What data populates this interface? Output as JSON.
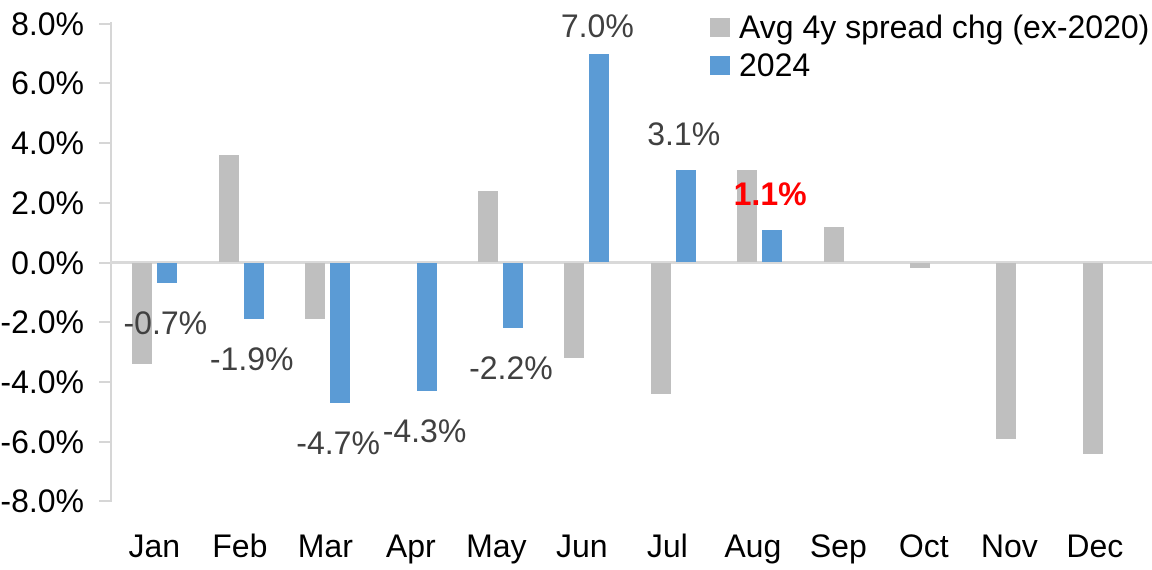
{
  "chart_data": {
    "type": "bar",
    "title": "",
    "xlabel": "",
    "ylabel": "",
    "grid": false,
    "legend_position": "top-right",
    "categories": [
      "Jan",
      "Feb",
      "Mar",
      "Apr",
      "May",
      "Jun",
      "Jul",
      "Aug",
      "Sep",
      "Oct",
      "Nov",
      "Dec"
    ],
    "series": [
      {
        "name": "Avg 4y spread chg (ex-2020)",
        "color": "#bfbfbf",
        "unit": "%",
        "values": [
          -3.4,
          3.6,
          -1.9,
          0.0,
          2.4,
          -3.2,
          -4.4,
          3.1,
          1.2,
          -0.2,
          -5.9,
          -6.4
        ]
      },
      {
        "name": "2024",
        "color": "#5b9bd5",
        "unit": "%",
        "values": [
          -0.7,
          -1.9,
          -4.7,
          -4.3,
          -2.2,
          7.0,
          3.1,
          1.1,
          null,
          null,
          null,
          null
        ]
      }
    ],
    "data_labels": [
      {
        "category": "Jan",
        "series": "2024",
        "text": "-0.7%",
        "color": "#404040",
        "bold": false
      },
      {
        "category": "Feb",
        "series": "2024",
        "text": "-1.9%",
        "color": "#404040",
        "bold": false
      },
      {
        "category": "Mar",
        "series": "2024",
        "text": "-4.7%",
        "color": "#404040",
        "bold": false
      },
      {
        "category": "Apr",
        "series": "2024",
        "text": "-4.3%",
        "color": "#404040",
        "bold": false
      },
      {
        "category": "May",
        "series": "2024",
        "text": "-2.2%",
        "color": "#404040",
        "bold": false
      },
      {
        "category": "Jun",
        "series": "2024",
        "text": "7.0%",
        "color": "#404040",
        "bold": false
      },
      {
        "category": "Jul",
        "series": "2024",
        "text": "3.1%",
        "color": "#404040",
        "bold": false
      },
      {
        "category": "Aug",
        "series": "2024",
        "text": "1.1%",
        "color": "#ff0000",
        "bold": true
      }
    ],
    "y_axis": {
      "min": -8,
      "max": 8,
      "step": 2,
      "tick_values": [
        8,
        6,
        4,
        2,
        0,
        -2,
        -4,
        -6,
        -8
      ],
      "ticks": [
        "8.0%",
        "6.0%",
        "4.0%",
        "2.0%",
        "0.0%",
        "-2.0%",
        "-4.0%",
        "-6.0%",
        "-8.0%"
      ]
    },
    "colors": {
      "axis_line": "#d9d9d9",
      "data_label": "#404040",
      "highlight_label": "#ff0000",
      "background": "#ffffff"
    }
  }
}
